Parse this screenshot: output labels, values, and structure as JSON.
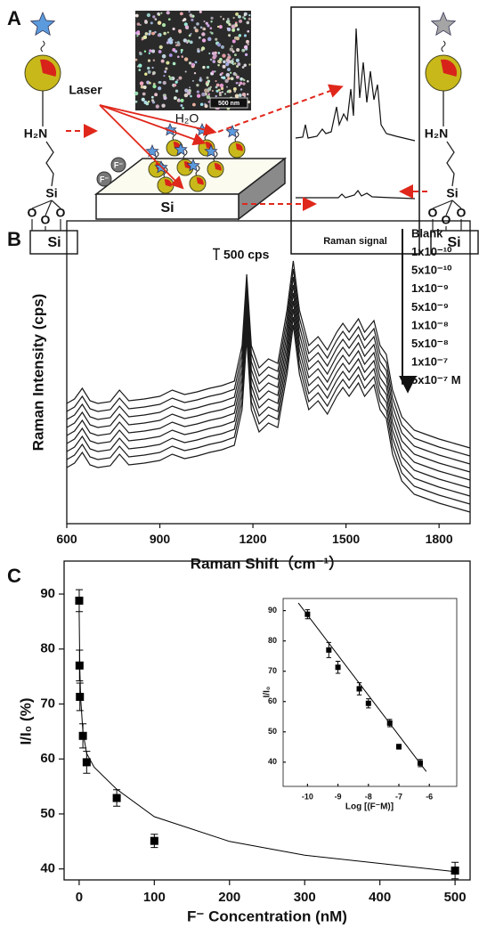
{
  "panel_a": {
    "label": "A",
    "sem_scale": "500 nm",
    "laser": "Laser",
    "water": "H₂O",
    "fluoride": [
      "F⁻",
      "F⁻"
    ],
    "slab": "Si",
    "raman_box": "Raman signal",
    "left_molecule": {
      "amine": "H₂N",
      "silicon": "Si",
      "oxygens": [
        "O",
        "O",
        "O"
      ],
      "substrate": "Si"
    },
    "right_molecule": {
      "amine": "H₂N",
      "silicon": "Si",
      "oxygens": [
        "O",
        "O",
        "O"
      ],
      "substrate": "Si"
    }
  },
  "chart_data": [
    {
      "type": "line",
      "panel_label": "B",
      "xlabel": "Raman Shift（cm⁻¹）",
      "ylabel": "Raman Intensity (cps)",
      "x": [
        600,
        625,
        650,
        675,
        700,
        740,
        770,
        800,
        850,
        900,
        940,
        980,
        1020,
        1060,
        1100,
        1140,
        1165,
        1180,
        1195,
        1220,
        1250,
        1280,
        1310,
        1330,
        1350,
        1380,
        1410,
        1440,
        1470,
        1490,
        1510,
        1540,
        1560,
        1590,
        1610,
        1630,
        1650,
        1680,
        1720,
        1760,
        1800,
        1850,
        1900
      ],
      "xlim": [
        600,
        1900
      ],
      "xticks": [
        600,
        900,
        1200,
        1500,
        1800
      ],
      "ylim": [
        0,
        13600
      ],
      "color": "#1a1a1a",
      "legend": "upper right",
      "scale_bar": {
        "value": 500,
        "label": "500 cps"
      },
      "series": [
        {
          "name": "Blank",
          "values": [
            5400,
            5600,
            6080,
            5520,
            5400,
            5480,
            6000,
            5520,
            5600,
            5720,
            6000,
            5800,
            5920,
            6080,
            6200,
            6400,
            8000,
            11200,
            8000,
            7000,
            7400,
            7200,
            9600,
            11800,
            9600,
            8000,
            8400,
            7800,
            8600,
            9000,
            8600,
            9200,
            8600,
            9120,
            8000,
            7600,
            6000,
            4800,
            4200,
            4000,
            3800,
            3600,
            3400
          ]
        },
        {
          "name": "1x10⁻¹⁰",
          "values": [
            5040,
            5240,
            5720,
            5160,
            5040,
            5120,
            5640,
            5160,
            5240,
            5360,
            5640,
            5440,
            5560,
            5720,
            5840,
            6040,
            7640,
            10840,
            7640,
            6640,
            7040,
            6840,
            9240,
            11440,
            9240,
            7640,
            8040,
            7440,
            8240,
            8640,
            8240,
            8840,
            8240,
            8760,
            7640,
            7240,
            5640,
            4440,
            3840,
            3640,
            3440,
            3240,
            3040
          ]
        },
        {
          "name": "5x10⁻¹⁰",
          "values": [
            4680,
            4880,
            5360,
            4800,
            4680,
            4760,
            5280,
            4800,
            4880,
            5000,
            5280,
            5080,
            5200,
            5360,
            5480,
            5680,
            7280,
            10480,
            7280,
            6280,
            6680,
            6480,
            8880,
            11080,
            8880,
            7280,
            7680,
            7080,
            7880,
            8280,
            7880,
            8480,
            7880,
            8400,
            7280,
            6880,
            5280,
            4080,
            3480,
            3280,
            3080,
            2880,
            2680
          ]
        },
        {
          "name": "1x10⁻⁹",
          "values": [
            4320,
            4520,
            5000,
            4440,
            4320,
            4400,
            4920,
            4440,
            4520,
            4640,
            4920,
            4720,
            4840,
            5000,
            5120,
            5320,
            6920,
            10120,
            6920,
            5920,
            6320,
            6120,
            8520,
            10720,
            8520,
            6920,
            7320,
            6720,
            7520,
            7920,
            7520,
            8120,
            7520,
            8040,
            6920,
            6520,
            4920,
            3720,
            3120,
            2920,
            2720,
            2520,
            2320
          ]
        },
        {
          "name": "5x10⁻⁹",
          "values": [
            3960,
            4160,
            4640,
            4080,
            3960,
            4040,
            4560,
            4080,
            4160,
            4280,
            4560,
            4360,
            4480,
            4640,
            4760,
            4960,
            6560,
            9760,
            6560,
            5560,
            5960,
            5760,
            8160,
            10360,
            8160,
            6560,
            6960,
            6360,
            7160,
            7560,
            7160,
            7760,
            7160,
            7680,
            6560,
            6160,
            4560,
            3360,
            2760,
            2560,
            2360,
            2160,
            1960
          ]
        },
        {
          "name": "1x10⁻⁸",
          "values": [
            3600,
            3800,
            4280,
            3720,
            3600,
            3680,
            4200,
            3720,
            3800,
            3920,
            4200,
            4000,
            4120,
            4280,
            4400,
            4600,
            6200,
            9400,
            6200,
            5200,
            5600,
            5400,
            7800,
            10000,
            7800,
            6200,
            6600,
            6000,
            6800,
            7200,
            6800,
            7400,
            6800,
            7320,
            6200,
            5800,
            4200,
            3000,
            2400,
            2200,
            2000,
            1800,
            1600
          ]
        },
        {
          "name": "5x10⁻⁸",
          "values": [
            3240,
            3440,
            3920,
            3360,
            3240,
            3320,
            3840,
            3360,
            3440,
            3560,
            3840,
            3640,
            3760,
            3920,
            4040,
            4240,
            5840,
            9040,
            5840,
            4840,
            5240,
            5040,
            7440,
            9640,
            7440,
            5840,
            6240,
            5640,
            6440,
            6840,
            6440,
            7040,
            6440,
            6960,
            5840,
            5440,
            3840,
            2640,
            2040,
            1840,
            1640,
            1440,
            1240
          ]
        },
        {
          "name": "1x10⁻⁷",
          "values": [
            2880,
            3080,
            3560,
            3000,
            2880,
            2960,
            3480,
            3000,
            3080,
            3200,
            3480,
            3280,
            3400,
            3560,
            3680,
            3880,
            5480,
            8680,
            5480,
            4480,
            4880,
            4680,
            7080,
            9280,
            7080,
            5480,
            5880,
            5280,
            6080,
            6480,
            6080,
            6680,
            6080,
            6600,
            5480,
            5080,
            3480,
            2280,
            1680,
            1480,
            1280,
            1080,
            880
          ]
        },
        {
          "name": "5x10⁻⁷ M",
          "values": [
            2520,
            2720,
            3200,
            2640,
            2520,
            2600,
            3120,
            2640,
            2720,
            2840,
            3120,
            2920,
            3040,
            3200,
            3320,
            3520,
            5120,
            8320,
            5120,
            4120,
            4520,
            4320,
            6720,
            8920,
            6720,
            5120,
            5520,
            4920,
            5720,
            6120,
            5720,
            6320,
            5720,
            6240,
            5120,
            4720,
            3120,
            1920,
            1320,
            1120,
            920,
            720,
            520
          ]
        }
      ]
    },
    {
      "type": "scatter",
      "panel_label": "C",
      "xlabel": "F⁻ Concentration (nM)",
      "ylabel": "I/I₀ (%)",
      "x": [
        0.1,
        0.5,
        1,
        5,
        10,
        50,
        100,
        500
      ],
      "values": [
        88.8,
        77,
        71.3,
        64.2,
        59.4,
        52.9,
        45.1,
        39.7
      ],
      "errors": [
        2,
        2.8,
        2.5,
        2.2,
        2,
        1.5,
        1.2,
        1.5
      ],
      "fit_x": [
        0,
        1,
        2,
        5,
        10,
        20,
        50,
        100,
        200,
        300,
        400,
        500
      ],
      "fit_values": [
        87,
        76,
        71,
        65,
        61,
        58.5,
        54.5,
        49.5,
        45,
        42.5,
        41,
        39.5
      ],
      "xlim": [
        -20,
        520
      ],
      "xticks": [
        0,
        100,
        200,
        300,
        400,
        500
      ],
      "ylim": [
        38,
        96
      ],
      "yticks": [
        40,
        50,
        60,
        70,
        80,
        90
      ],
      "color": "#000"
    },
    {
      "type": "scatter",
      "xlabel": "Log [(F⁻M)]",
      "ylabel": "I/I₀",
      "x": [
        -10,
        -9.3,
        -9,
        -8.3,
        -8,
        -7.3,
        -7,
        -6.3
      ],
      "values": [
        88.8,
        77,
        71.3,
        64.2,
        59.4,
        52.9,
        45.1,
        39.7
      ],
      "errors": [
        1.5,
        2.5,
        2,
        2,
        1.5,
        1.2,
        0.8,
        1.2
      ],
      "fit_x": [
        -10.3,
        -6.1
      ],
      "fit_values": [
        92.5,
        36.9
      ],
      "xlim": [
        -10.8,
        -5.1
      ],
      "xticks": [
        -10,
        -9,
        -8,
        -7,
        -6
      ],
      "ylim": [
        32,
        94
      ],
      "yticks": [
        40,
        50,
        60,
        70,
        80,
        90
      ],
      "color": "#000"
    }
  ]
}
